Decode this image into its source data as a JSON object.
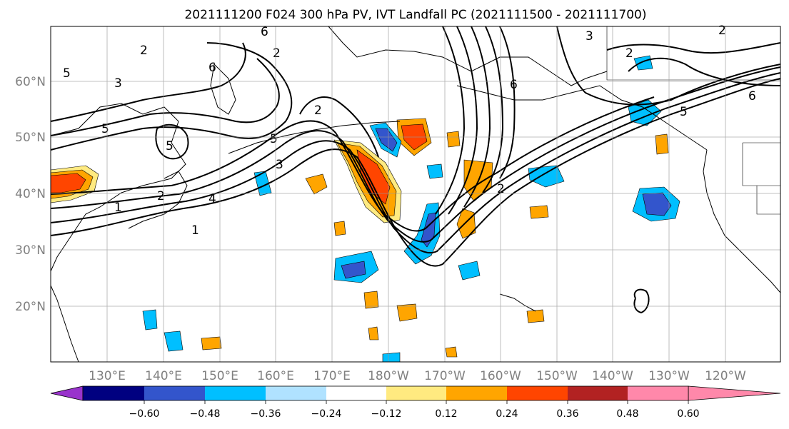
{
  "title": "2021111200 F024 300 hPa PV, IVT Landfall PC (2021111500 - 2021111700)",
  "lat_labels": [
    "60°N",
    "50°N",
    "40°N",
    "30°N",
    "20°N"
  ],
  "lon_labels": [
    "130°E",
    "140°E",
    "150°E",
    "160°E",
    "170°E",
    "180°W",
    "170°W",
    "160°W",
    "150°W",
    "140°W",
    "130°W",
    "120°W"
  ],
  "colorbar": {
    "tick_labels": [
      "−0.60",
      "−0.48",
      "−0.36",
      "−0.24",
      "−0.12",
      "0.12",
      "0.24",
      "0.36",
      "0.48",
      "0.60"
    ],
    "colors": [
      "#9933cc",
      "#000080",
      "#3355cc",
      "#00bfff",
      "#b0e2ff",
      "#ffffff",
      "#ffea80",
      "#ffa500",
      "#ff4500",
      "#b22222",
      "#ff88aa"
    ]
  },
  "contour_labels": [
    "6",
    "2",
    "5",
    "3",
    "6",
    "5",
    "1",
    "2",
    "4",
    "1",
    "2",
    "3",
    "5",
    "2",
    "3",
    "6",
    "2",
    "5",
    "2",
    "6",
    "5",
    "2"
  ]
}
